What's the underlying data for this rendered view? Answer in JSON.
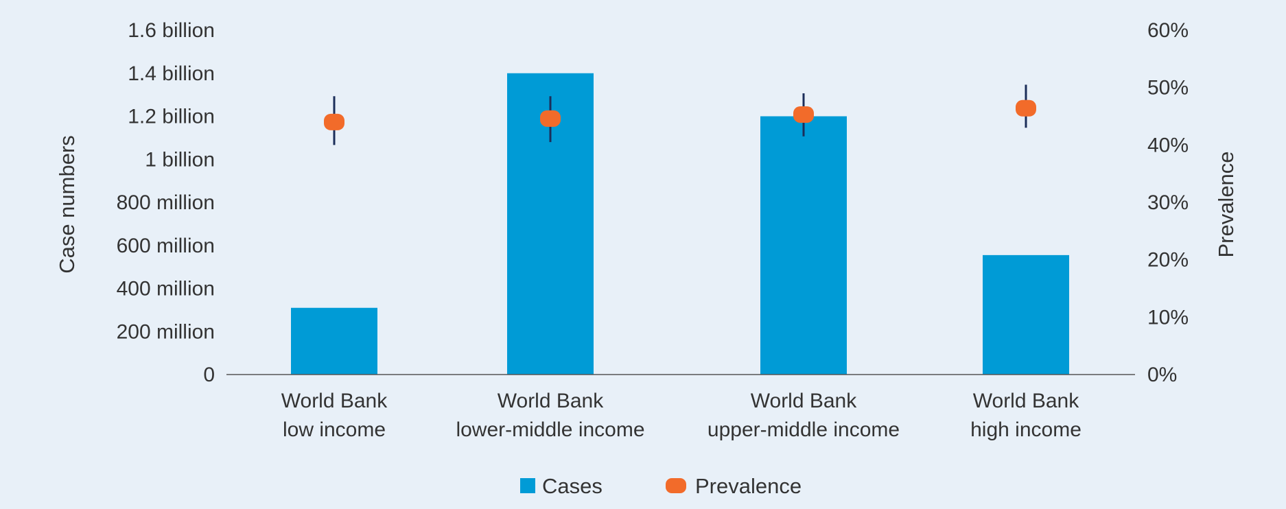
{
  "chart_data": {
    "type": "bar",
    "categories": [
      [
        "World Bank",
        "low income"
      ],
      [
        "World Bank",
        "lower-middle income"
      ],
      [
        "World Bank",
        "upper-middle income"
      ],
      [
        "World Bank",
        "high income"
      ]
    ],
    "series": [
      {
        "name": "Cases",
        "type": "bar",
        "axis": "left",
        "values": [
          310000000,
          1400000000,
          1200000000,
          555000000
        ]
      },
      {
        "name": "Prevalence",
        "type": "point-with-error",
        "axis": "right",
        "values": [
          44,
          44.6,
          45.3,
          46.4
        ],
        "error_low": [
          40,
          40.5,
          41.5,
          43
        ],
        "error_high": [
          48.5,
          48.5,
          49,
          50.5
        ]
      }
    ],
    "left_axis": {
      "label": "Case numbers",
      "ylim": [
        0,
        1600000000
      ],
      "ticks": [
        0,
        200000000,
        400000000,
        600000000,
        800000000,
        1000000000,
        1200000000,
        1400000000,
        1600000000
      ],
      "tick_labels": [
        "0",
        "200 million",
        "400 million",
        "600 million",
        "800 million",
        "1 billion",
        "1.2 billion",
        "1.4 billion",
        "1.6 billion"
      ]
    },
    "right_axis": {
      "label": "Prevalence",
      "ylim": [
        0,
        60
      ],
      "ticks": [
        0,
        10,
        20,
        30,
        40,
        50,
        60
      ],
      "tick_labels": [
        "0%",
        "10%",
        "20%",
        "30%",
        "40%",
        "50%",
        "60%"
      ]
    },
    "legend": {
      "position": "bottom",
      "items": [
        "Cases",
        "Prevalence"
      ]
    },
    "grid": false,
    "colors": {
      "bar": "#009bd6",
      "point": "#f26b2a",
      "error": "#1b2e5a",
      "background": "#e8f0f8",
      "axis": "#555555",
      "text": "#333333"
    }
  }
}
